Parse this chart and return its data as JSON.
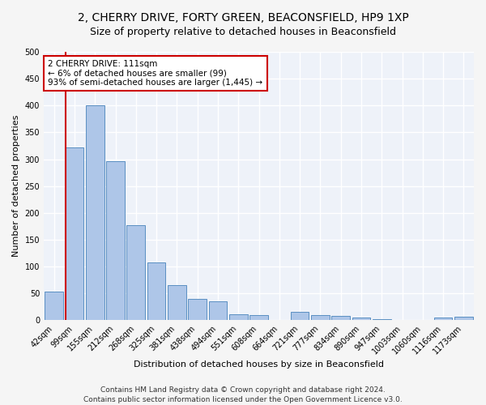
{
  "title": "2, CHERRY DRIVE, FORTY GREEN, BEACONSFIELD, HP9 1XP",
  "subtitle": "Size of property relative to detached houses in Beaconsfield",
  "xlabel": "Distribution of detached houses by size in Beaconsfield",
  "ylabel": "Number of detached properties",
  "categories": [
    "42sqm",
    "99sqm",
    "155sqm",
    "212sqm",
    "268sqm",
    "325sqm",
    "381sqm",
    "438sqm",
    "494sqm",
    "551sqm",
    "608sqm",
    "664sqm",
    "721sqm",
    "777sqm",
    "834sqm",
    "890sqm",
    "947sqm",
    "1003sqm",
    "1060sqm",
    "1116sqm",
    "1173sqm"
  ],
  "values": [
    54,
    322,
    400,
    297,
    177,
    108,
    65,
    40,
    36,
    11,
    10,
    0,
    15,
    10,
    8,
    5,
    2,
    0,
    0,
    5,
    6
  ],
  "bar_color": "#aec6e8",
  "bar_edge_color": "#5a8fc2",
  "vline_x_index": 1,
  "vline_color": "#cc0000",
  "annotation_text": "2 CHERRY DRIVE: 111sqm\n← 6% of detached houses are smaller (99)\n93% of semi-detached houses are larger (1,445) →",
  "annotation_box_color": "#ffffff",
  "annotation_box_edge": "#cc0000",
  "ylim": [
    0,
    500
  ],
  "yticks": [
    0,
    50,
    100,
    150,
    200,
    250,
    300,
    350,
    400,
    450,
    500
  ],
  "footer": "Contains HM Land Registry data © Crown copyright and database right 2024.\nContains public sector information licensed under the Open Government Licence v3.0.",
  "bg_color": "#eef2f9",
  "grid_color": "#ffffff",
  "fig_bg_color": "#f5f5f5",
  "title_fontsize": 10,
  "subtitle_fontsize": 9,
  "label_fontsize": 8,
  "tick_fontsize": 7,
  "footer_fontsize": 6.5,
  "annotation_fontsize": 7.5
}
